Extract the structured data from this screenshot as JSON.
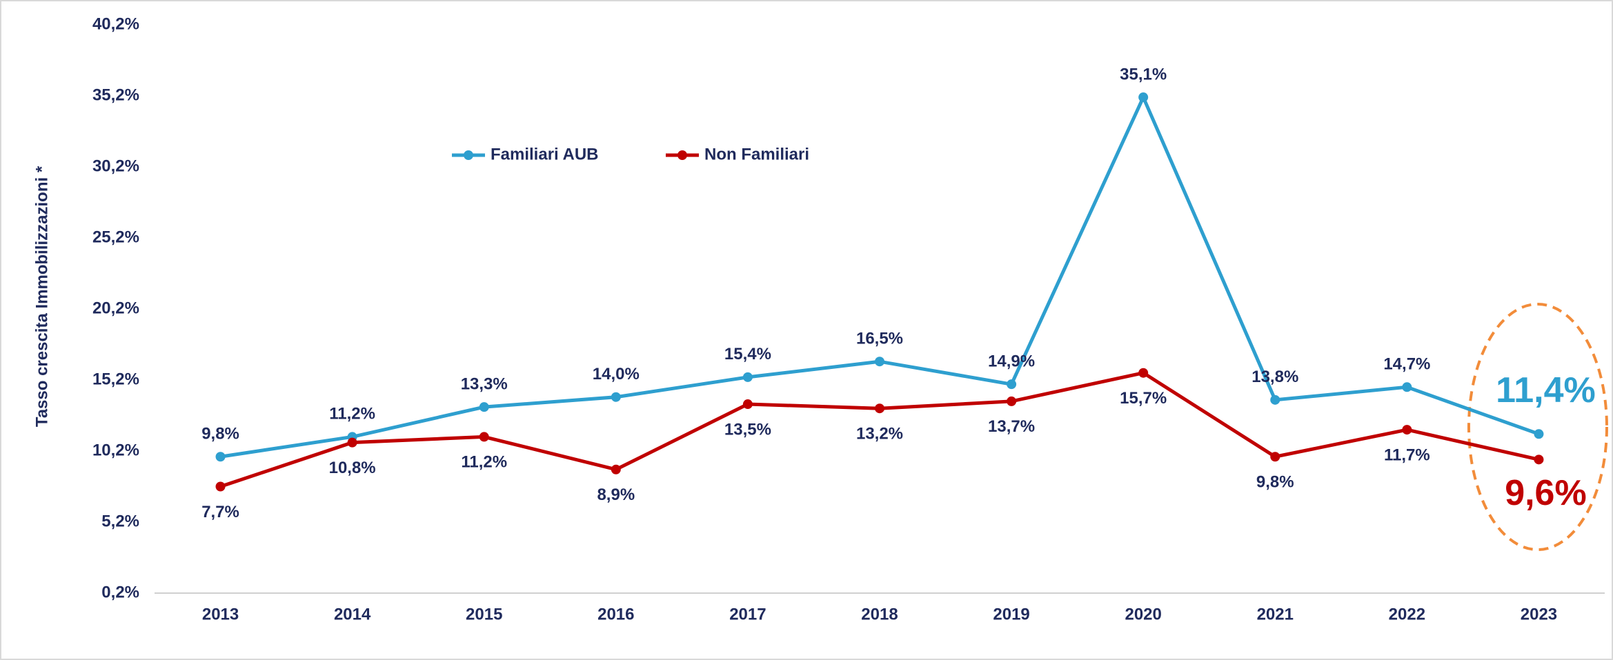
{
  "chart_data": {
    "type": "line",
    "y_label": "Tasso crescita Immobilizzazioni *",
    "categories": [
      "2013",
      "2014",
      "2015",
      "2016",
      "2017",
      "2018",
      "2019",
      "2020",
      "2021",
      "2022",
      "2023"
    ],
    "series": [
      {
        "name": "Familiari AUB",
        "color": "#2e9fcf",
        "values": [
          9.8,
          11.2,
          13.3,
          14.0,
          15.4,
          16.5,
          14.9,
          35.1,
          13.8,
          14.7,
          11.4
        ],
        "value_labels": [
          "9,8%",
          "11,2%",
          "13,3%",
          "14,0%",
          "15,4%",
          "16,5%",
          "14,9%",
          "35,1%",
          "13,8%",
          "14,7%",
          "11,4%"
        ]
      },
      {
        "name": "Non Familiari",
        "color": "#c00000",
        "values": [
          7.7,
          10.8,
          11.2,
          8.9,
          13.5,
          13.2,
          13.7,
          15.7,
          9.8,
          11.7,
          9.6
        ],
        "value_labels": [
          "7,7%",
          "10,8%",
          "11,2%",
          "8,9%",
          "13,5%",
          "13,2%",
          "13,7%",
          "15,7%",
          "9,8%",
          "11,7%",
          "9,6%"
        ]
      }
    ],
    "ylim": [
      0.2,
      40.2
    ],
    "yticks": [
      {
        "value": 0.2,
        "label": "0,2%"
      },
      {
        "value": 5.2,
        "label": "5,2%"
      },
      {
        "value": 10.2,
        "label": "10,2%"
      },
      {
        "value": 15.2,
        "label": "15,2%"
      },
      {
        "value": 20.2,
        "label": "20,2%"
      },
      {
        "value": 25.2,
        "label": "25,2%"
      },
      {
        "value": 30.2,
        "label": "30,2%"
      },
      {
        "value": 35.2,
        "label": "35,2%"
      },
      {
        "value": 40.2,
        "label": "40,2%"
      }
    ],
    "grid": false,
    "legend": "top"
  }
}
